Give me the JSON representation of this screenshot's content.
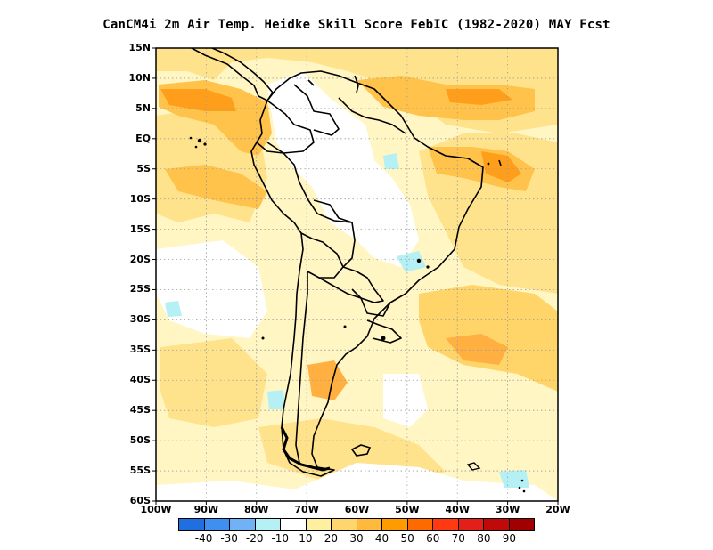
{
  "title": "CanCM4i  2m Air Temp. Heidke Skill Score FebIC (1982-2020) MAY Fcst",
  "lat_labels": [
    "15N",
    "10N",
    "5N",
    "EQ",
    "5S",
    "10S",
    "15S",
    "20S",
    "25S",
    "30S",
    "35S",
    "40S",
    "45S",
    "50S",
    "55S",
    "60S"
  ],
  "lon_labels": [
    "100W",
    "90W",
    "80W",
    "70W",
    "60W",
    "50W",
    "40W",
    "30W",
    "20W"
  ],
  "colorbar": {
    "labels": [
      "-40",
      "-30",
      "-20",
      "-10",
      "10",
      "20",
      "30",
      "40",
      "50",
      "60",
      "70",
      "80",
      "90"
    ],
    "colors": [
      "#1f6fe0",
      "#3d8ff0",
      "#70b2f5",
      "#b4f0f4",
      "#ffffff",
      "#fff0a0",
      "#ffd66e",
      "#ffb93c",
      "#ff9b00",
      "#ff6a00",
      "#ff3a10",
      "#e41f1a",
      "#c00a0a",
      "#a00000"
    ]
  },
  "colors": {
    "land_outline": "#000000",
    "grid": "#9a9a9a",
    "base_fill": "#fff3b0"
  }
}
